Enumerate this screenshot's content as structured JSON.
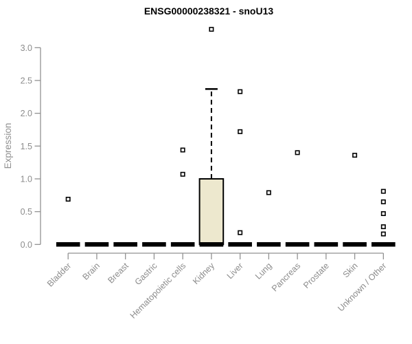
{
  "chart_data": {
    "type": "boxplot",
    "title": "ENSG00000238321 - snoU13",
    "xlabel": "",
    "ylabel": "Expression",
    "ylim": [
      0.0,
      3.3
    ],
    "yticks": [
      0.0,
      0.5,
      1.0,
      1.5,
      2.0,
      2.5,
      3.0
    ],
    "grid": false,
    "legend": null,
    "categories": [
      "Bladder",
      "Brain",
      "Breast",
      "Gastric",
      "Hematopoietic cells",
      "Kidney",
      "Liver",
      "Lung",
      "Pancreas",
      "Prostate",
      "Skin",
      "Unknown / Other"
    ],
    "series": [
      {
        "category": "Bladder",
        "q1": 0,
        "median": 0,
        "q3": 0,
        "whisker_low": 0,
        "whisker_high": 0,
        "outliers": [
          0.69
        ]
      },
      {
        "category": "Brain",
        "q1": 0,
        "median": 0,
        "q3": 0,
        "whisker_low": 0,
        "whisker_high": 0,
        "outliers": []
      },
      {
        "category": "Breast",
        "q1": 0,
        "median": 0,
        "q3": 0,
        "whisker_low": 0,
        "whisker_high": 0,
        "outliers": []
      },
      {
        "category": "Gastric",
        "q1": 0,
        "median": 0,
        "q3": 0,
        "whisker_low": 0,
        "whisker_high": 0,
        "outliers": []
      },
      {
        "category": "Hematopoietic cells",
        "q1": 0,
        "median": 0,
        "q3": 0,
        "whisker_low": 0,
        "whisker_high": 0,
        "outliers": [
          1.44,
          1.07
        ]
      },
      {
        "category": "Kidney",
        "q1": 0,
        "median": 0,
        "q3": 1.0,
        "whisker_low": 0,
        "whisker_high": 2.37,
        "outliers": [
          3.28
        ]
      },
      {
        "category": "Liver",
        "q1": 0,
        "median": 0,
        "q3": 0,
        "whisker_low": 0,
        "whisker_high": 0,
        "outliers": [
          2.33,
          1.72,
          0.18
        ]
      },
      {
        "category": "Lung",
        "q1": 0,
        "median": 0,
        "q3": 0,
        "whisker_low": 0,
        "whisker_high": 0,
        "outliers": [
          0.79
        ]
      },
      {
        "category": "Pancreas",
        "q1": 0,
        "median": 0,
        "q3": 0,
        "whisker_low": 0,
        "whisker_high": 0,
        "outliers": [
          1.4
        ]
      },
      {
        "category": "Prostate",
        "q1": 0,
        "median": 0,
        "q3": 0,
        "whisker_low": 0,
        "whisker_high": 0,
        "outliers": []
      },
      {
        "category": "Skin",
        "q1": 0,
        "median": 0,
        "q3": 0,
        "whisker_low": 0,
        "whisker_high": 0,
        "outliers": [
          1.36
        ]
      },
      {
        "category": "Unknown / Other",
        "q1": 0,
        "median": 0,
        "q3": 0,
        "whisker_low": 0,
        "whisker_high": 0,
        "outliers": [
          0.81,
          0.65,
          0.47,
          0.27,
          0.16
        ]
      }
    ],
    "colors": {
      "box_fill": "#EDE8CE",
      "box_border": "#000000",
      "whisker": "#000000",
      "outlier_fill": "#FFFFFF",
      "outlier_border": "#000000",
      "axis": "#919191",
      "tick_label": "#8C8C8C",
      "title": "#000000",
      "background": "#FFFFFF"
    }
  }
}
